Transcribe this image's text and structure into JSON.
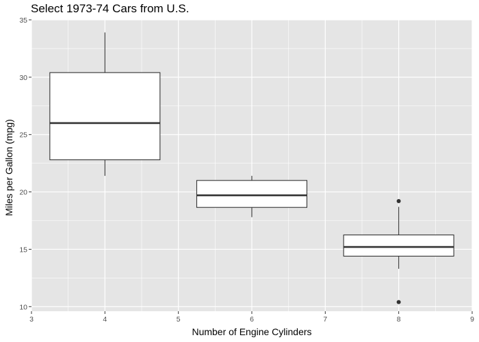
{
  "chart_data": {
    "type": "boxplot",
    "title": "Select 1973-74 Cars from U.S.",
    "xlabel": "Number of Engine Cylinders",
    "ylabel": "Miles per Gallon (mpg)",
    "xlim": [
      3,
      9
    ],
    "ylim": [
      9.6,
      35
    ],
    "xticks": [
      3,
      4,
      5,
      6,
      7,
      8,
      9
    ],
    "yticks": [
      10,
      15,
      20,
      25,
      30,
      35
    ],
    "grid": true,
    "colors": {
      "panel": "#e5e5e5",
      "grid": "#ffffff",
      "box_fill": "#ffffff",
      "box_line": "#333333",
      "text": "#4d4d4d"
    },
    "boxes": [
      {
        "x": 4,
        "lower_whisker": 21.4,
        "q1": 22.8,
        "median": 26.0,
        "q3": 30.4,
        "upper_whisker": 33.9,
        "outliers": []
      },
      {
        "x": 6,
        "lower_whisker": 17.8,
        "q1": 18.65,
        "median": 19.7,
        "q3": 21.0,
        "upper_whisker": 21.4,
        "outliers": []
      },
      {
        "x": 8,
        "lower_whisker": 13.3,
        "q1": 14.4,
        "median": 15.2,
        "q3": 16.25,
        "upper_whisker": 18.7,
        "outliers": [
          10.4,
          19.2
        ]
      }
    ]
  }
}
